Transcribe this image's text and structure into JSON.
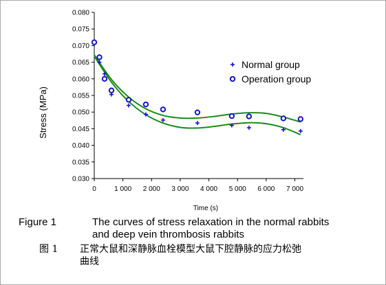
{
  "chart_data": {
    "type": "scatter",
    "xlabel": "Time (s)",
    "ylabel": "Stress (MPa)",
    "xlim": [
      0,
      7300
    ],
    "ylim": [
      0.03,
      0.08
    ],
    "x_ticks": [
      0,
      1000,
      2000,
      3000,
      4000,
      5000,
      6000,
      7000
    ],
    "x_tick_labels": [
      "0",
      "1 000",
      "2 000",
      "3 000",
      "4 000",
      "5 000",
      "6 000",
      "7 000"
    ],
    "y_ticks": [
      0.03,
      0.035,
      0.04,
      0.045,
      0.05,
      0.055,
      0.06,
      0.065,
      0.07,
      0.075,
      0.08
    ],
    "y_tick_labels": [
      "0.030",
      "0.035",
      "0.040",
      "0.045",
      "0.050",
      "0.055",
      "0.060",
      "0.065",
      "0.070",
      "0.075",
      "0.080"
    ],
    "grid": false,
    "legend_position": "top-right",
    "series": [
      {
        "name": "Normal group",
        "marker": "plus",
        "color": "#1414c8",
        "points": [
          [
            0,
            0.0705
          ],
          [
            180,
            0.065
          ],
          [
            360,
            0.0615
          ],
          [
            600,
            0.0553
          ],
          [
            1200,
            0.052
          ],
          [
            1800,
            0.0493
          ],
          [
            2400,
            0.0476
          ],
          [
            3600,
            0.0467
          ],
          [
            4800,
            0.046
          ],
          [
            5400,
            0.0453
          ],
          [
            6600,
            0.0447
          ],
          [
            7200,
            0.0443
          ]
        ],
        "trend": [
          [
            0,
            0.0668
          ],
          [
            600,
            0.059
          ],
          [
            1200,
            0.0532
          ],
          [
            1800,
            0.0492
          ],
          [
            2400,
            0.0467
          ],
          [
            3000,
            0.0454
          ],
          [
            3600,
            0.0452
          ],
          [
            4200,
            0.0457
          ],
          [
            4800,
            0.0464
          ],
          [
            5400,
            0.0468
          ],
          [
            6000,
            0.0465
          ],
          [
            6600,
            0.0453
          ],
          [
            7200,
            0.0432
          ]
        ]
      },
      {
        "name": "Operation group",
        "marker": "circle",
        "color": "#1414c8",
        "points": [
          [
            0,
            0.071
          ],
          [
            180,
            0.0665
          ],
          [
            360,
            0.06
          ],
          [
            600,
            0.0565
          ],
          [
            1200,
            0.0537
          ],
          [
            1800,
            0.0523
          ],
          [
            2400,
            0.0508
          ],
          [
            3600,
            0.0499
          ],
          [
            4800,
            0.0488
          ],
          [
            5400,
            0.0487
          ],
          [
            6600,
            0.0481
          ],
          [
            7200,
            0.0479
          ]
        ],
        "trend": [
          [
            0,
            0.0672
          ],
          [
            600,
            0.0598
          ],
          [
            1200,
            0.0545
          ],
          [
            1800,
            0.051
          ],
          [
            2400,
            0.049
          ],
          [
            3000,
            0.0482
          ],
          [
            3600,
            0.0482
          ],
          [
            4200,
            0.0487
          ],
          [
            4800,
            0.0494
          ],
          [
            5400,
            0.0498
          ],
          [
            6000,
            0.0496
          ],
          [
            6600,
            0.0485
          ],
          [
            7200,
            0.047
          ]
        ]
      }
    ],
    "trend_color": "#1a8a1a"
  },
  "caption": {
    "en_label": "Figure 1",
    "en_text_line1": "The curves of stress relaxation in the normal rabbits",
    "en_text_line2": "and deep vein thrombosis rabbits",
    "cn_label": "图  1",
    "cn_text_line1": "正常大鼠和深静脉血栓模型大鼠下腔静脉的应力松弛",
    "cn_text_line2": "曲线"
  }
}
